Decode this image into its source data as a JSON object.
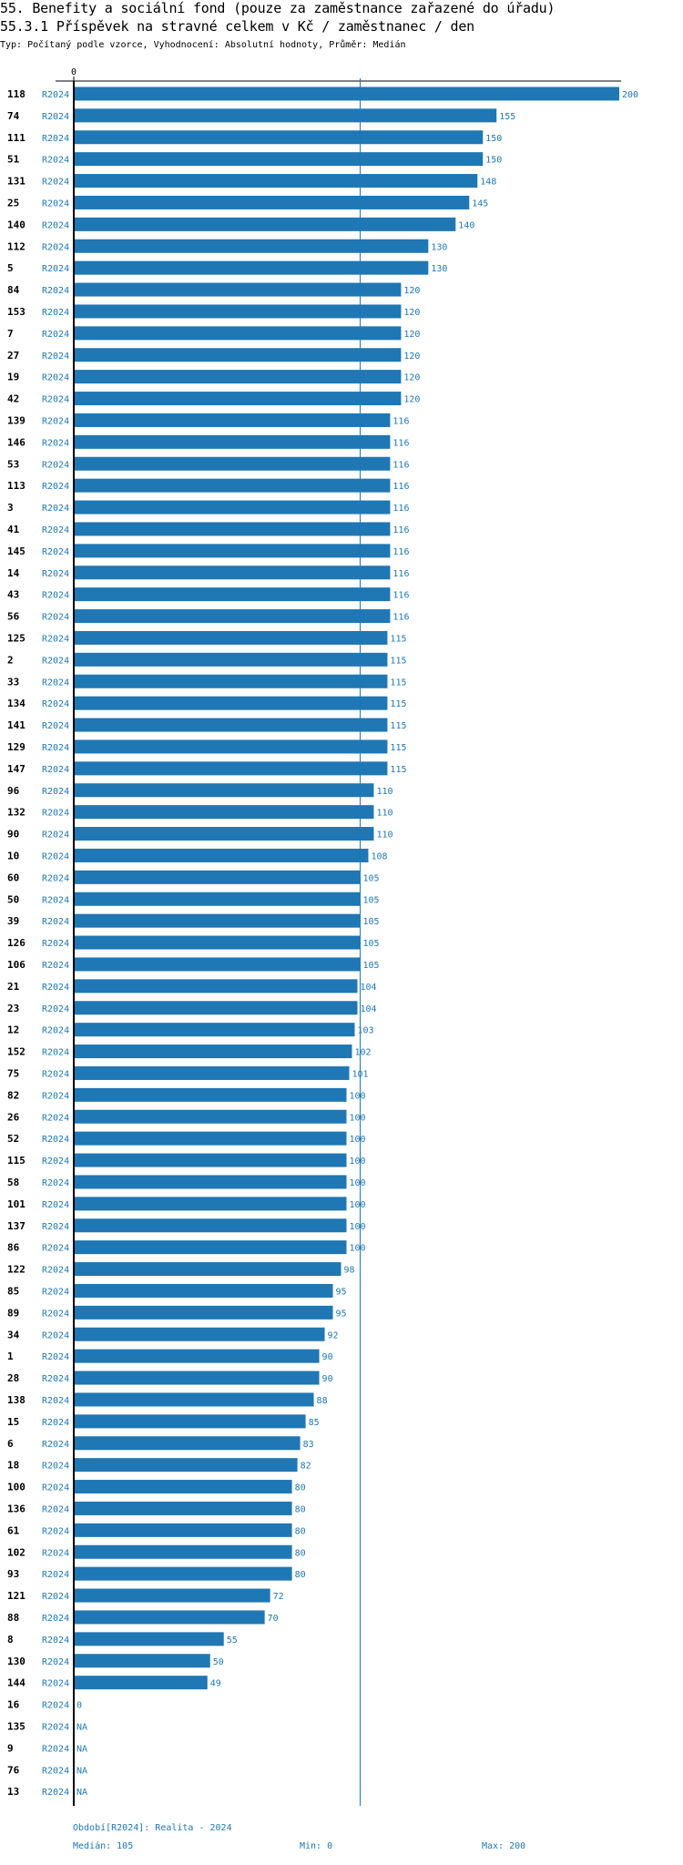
{
  "header": {
    "title": "55. Benefity a sociální fond (pouze za zaměstnance zařazené do úřadu)",
    "subtitle": "55.3.1 Příspěvek na stravné celkem v Kč / zaměstnanec / den",
    "meta": "Typ: Počítaný podle vzorce, Vyhodnocení: Absolutní hodnoty, Průměr: Medián"
  },
  "footer": {
    "period": "Období[R2024]: Realita - 2024",
    "median": "Medián: 105",
    "min": "Min: 0",
    "max": "Max: 200"
  },
  "colors": {
    "bar": "#1f77b4",
    "text_value": "#1f77b4",
    "median_line": "#1f77b4"
  },
  "chart_data": {
    "type": "bar",
    "orientation": "horizontal",
    "title": "55.3.1 Příspěvek na stravné celkem v Kč / zaměstnanec / den",
    "x_tick_label": "0",
    "xlim": [
      0,
      200
    ],
    "median": 105,
    "period_label": "R2024",
    "categories": [
      "118",
      "74",
      "111",
      "51",
      "131",
      "25",
      "140",
      "112",
      "5",
      "84",
      "153",
      "7",
      "27",
      "19",
      "42",
      "139",
      "146",
      "53",
      "113",
      "3",
      "41",
      "145",
      "14",
      "43",
      "56",
      "125",
      "2",
      "33",
      "134",
      "141",
      "129",
      "147",
      "96",
      "132",
      "90",
      "10",
      "60",
      "50",
      "39",
      "126",
      "106",
      "21",
      "23",
      "12",
      "152",
      "75",
      "82",
      "26",
      "52",
      "115",
      "58",
      "101",
      "137",
      "86",
      "122",
      "85",
      "89",
      "34",
      "1",
      "28",
      "138",
      "15",
      "6",
      "18",
      "100",
      "136",
      "61",
      "102",
      "93",
      "121",
      "88",
      "8",
      "130",
      "144",
      "16",
      "135",
      "9",
      "76",
      "13"
    ],
    "values": [
      200,
      155,
      150,
      150,
      148,
      145,
      140,
      130,
      130,
      120,
      120,
      120,
      120,
      120,
      120,
      116,
      116,
      116,
      116,
      116,
      116,
      116,
      116,
      116,
      116,
      115,
      115,
      115,
      115,
      115,
      115,
      115,
      110,
      110,
      110,
      108,
      105,
      105,
      105,
      105,
      105,
      104,
      104,
      103,
      102,
      101,
      100,
      100,
      100,
      100,
      100,
      100,
      100,
      100,
      98,
      95,
      95,
      92,
      90,
      90,
      88,
      85,
      83,
      82,
      80,
      80,
      80,
      80,
      80,
      72,
      70,
      55,
      50,
      49,
      0,
      null,
      null,
      null,
      null
    ],
    "missing_label": "NA"
  }
}
